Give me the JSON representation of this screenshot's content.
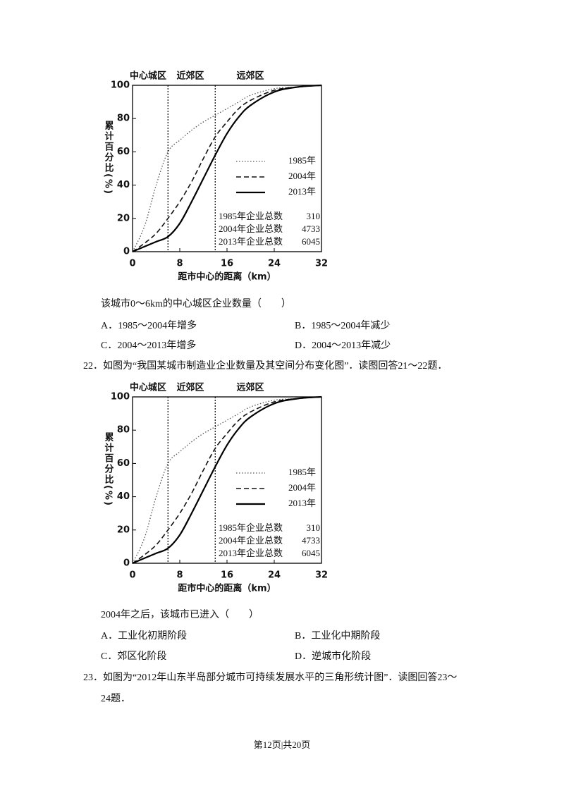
{
  "chart_data": [
    {
      "type": "line",
      "zone_labels": [
        "中心城区",
        "近郊区",
        "远郊区"
      ],
      "zone_bounds": [
        6,
        14
      ],
      "ylabel": "累计百分比(%)",
      "xlabel": "距市中心的距离（km）",
      "x": [
        0,
        2,
        4,
        6,
        8,
        10,
        12,
        14,
        16,
        18,
        20,
        24,
        28,
        32
      ],
      "series": [
        {
          "name": "1985年",
          "color": "#555555",
          "dash": "dotted",
          "values": [
            0,
            15,
            40,
            60,
            67,
            73,
            78,
            82,
            86,
            90,
            94,
            98,
            99,
            100
          ]
        },
        {
          "name": "2004年",
          "color": "#111111",
          "dash": "dashed",
          "values": [
            0,
            5,
            11,
            20,
            30,
            42,
            56,
            69,
            78,
            86,
            91,
            97,
            99,
            100
          ]
        },
        {
          "name": "2013年",
          "color": "#000000",
          "dash": "solid",
          "values": [
            0,
            3,
            6,
            9,
            17,
            30,
            44,
            58,
            71,
            81,
            88,
            96,
            99,
            100
          ]
        }
      ],
      "annotations": [
        {
          "text": "1985年企业总数",
          "value": 310
        },
        {
          "text": "2004年企业总数",
          "value": 4733
        },
        {
          "text": "2013年企业总数",
          "value": 6045
        }
      ],
      "xlim": [
        0,
        32
      ],
      "ylim": [
        0,
        100
      ],
      "xticks": [
        0,
        8,
        16,
        24,
        32
      ],
      "yticks": [
        0,
        20,
        40,
        60,
        80,
        100
      ]
    },
    {
      "type": "line",
      "zone_labels": [
        "中心城区",
        "近郊区",
        "远郊区"
      ],
      "zone_bounds": [
        6,
        14
      ],
      "ylabel": "累计百分比(%)",
      "xlabel": "距市中心的距离（km）",
      "x": [
        0,
        2,
        4,
        6,
        8,
        10,
        12,
        14,
        16,
        18,
        20,
        24,
        28,
        32
      ],
      "series": [
        {
          "name": "1985年",
          "color": "#555555",
          "dash": "dotted",
          "values": [
            0,
            15,
            40,
            60,
            67,
            73,
            78,
            82,
            86,
            90,
            94,
            98,
            99,
            100
          ]
        },
        {
          "name": "2004年",
          "color": "#111111",
          "dash": "dashed",
          "values": [
            0,
            5,
            11,
            20,
            30,
            42,
            56,
            69,
            78,
            86,
            91,
            97,
            99,
            100
          ]
        },
        {
          "name": "2013年",
          "color": "#000000",
          "dash": "solid",
          "values": [
            0,
            3,
            6,
            9,
            17,
            30,
            44,
            58,
            71,
            81,
            88,
            96,
            99,
            100
          ]
        }
      ],
      "annotations": [
        {
          "text": "1985年企业总数",
          "value": 310
        },
        {
          "text": "2004年企业总数",
          "value": 4733
        },
        {
          "text": "2013年企业总数",
          "value": 6045
        }
      ],
      "xlim": [
        0,
        32
      ],
      "ylim": [
        0,
        100
      ],
      "xticks": [
        0,
        8,
        16,
        24,
        32
      ],
      "yticks": [
        0,
        20,
        40,
        60,
        80,
        100
      ]
    }
  ],
  "text": {
    "q1_stem": "该城市0～6km的中心城区企业数量（　　）",
    "q1_options": [
      "A．1985～2004年增多",
      "B．1985～2004年减少",
      "C．2004～2013年增多",
      "D．2004～2013年减少"
    ],
    "intro_22": "22．如图为“我国某城市制造业企业数量及其空间分布变化图”．读图回答21～22题．",
    "q2_stem": "2004年之后，该城市已进入（　　）",
    "q2_options": [
      "A．工业化初期阶段",
      "B．工业化中期阶段",
      "C．郊区化阶段",
      "D．逆城市化阶段"
    ],
    "intro_23": [
      "23．如图为“2012年山东半岛部分城市可持续发展水平的三角形统计图”．读图回答23～",
      "24题．"
    ],
    "footer": "第12页|共20页"
  }
}
